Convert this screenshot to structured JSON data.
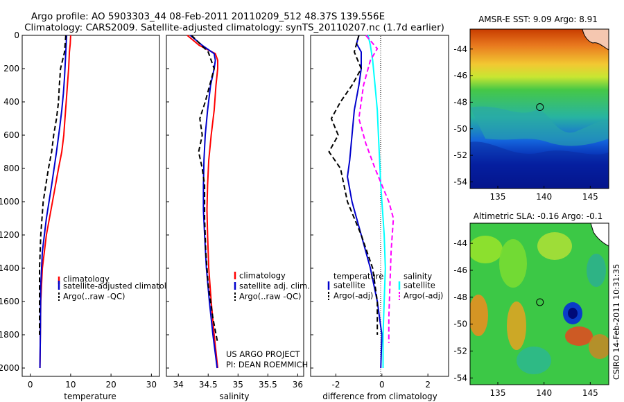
{
  "figure": {
    "title_line1": "Argo profile: AO 5903303_44 08-Feb-2011 20110209_512 48.37S 139.556E",
    "title_line2": "Climatology: CARS2009. Satellite-adjusted climatology: synTS_20110207.nc (1.7d earlier)",
    "credit_line1": "US ARGO PROJECT",
    "credit_line2": "PI: DEAN ROEMMICH",
    "stamp": "CSIRO 14-Feb-2011 10:31:35"
  },
  "colors": {
    "climatology": "#ff0000",
    "satellite": "#0000cc",
    "argo": "#000000",
    "satellite_salinity": "#00ffff",
    "argo_salinity": "#ff00ff"
  },
  "chart_data": [
    {
      "type": "line",
      "id": "temperature",
      "xlabel": "temperature",
      "ylabel": "",
      "xlim": [
        -2,
        32
      ],
      "ylim": [
        2050,
        0
      ],
      "xticks": [
        0,
        10,
        20,
        30
      ],
      "yticks": [
        0,
        200,
        400,
        600,
        800,
        1000,
        1200,
        1400,
        1600,
        1800,
        2000
      ],
      "legend": [
        "climatology",
        "satellite-adjusted climatology",
        "Argo(..raw -QC)"
      ],
      "series": [
        {
          "name": "climatology",
          "color": "#ff0000",
          "dash": "solid",
          "x": [
            10.0,
            9.9,
            9.7,
            9.5,
            9.2,
            8.9,
            8.6,
            8.3,
            7.8,
            7.0,
            5.5,
            4.0,
            3.0,
            2.6,
            2.5,
            2.4
          ],
          "y": [
            0,
            50,
            100,
            200,
            300,
            400,
            500,
            600,
            700,
            800,
            1000,
            1200,
            1400,
            1600,
            1800,
            2000
          ]
        },
        {
          "name": "satellite-adjusted climatology",
          "color": "#0000cc",
          "dash": "solid",
          "x": [
            9.0,
            8.9,
            8.7,
            8.5,
            8.2,
            7.8,
            7.3,
            6.5,
            5.3,
            4.0,
            3.0,
            2.6,
            2.5,
            2.4
          ],
          "y": [
            0,
            50,
            150,
            250,
            350,
            450,
            550,
            700,
            900,
            1100,
            1300,
            1500,
            1800,
            2000
          ]
        },
        {
          "name": "Argo(..raw -QC)",
          "color": "#000000",
          "dash": "dashed",
          "x": [
            8.8,
            8.5,
            7.5,
            7.2,
            7.0,
            6.5,
            5.8,
            5.3,
            4.5,
            3.2,
            2.6,
            2.3,
            2.3,
            2.3
          ],
          "y": [
            0,
            100,
            200,
            300,
            400,
            500,
            600,
            700,
            800,
            1000,
            1200,
            1400,
            1700,
            1800
          ]
        }
      ]
    },
    {
      "type": "line",
      "id": "salinity",
      "xlabel": "salinity",
      "ylabel": "",
      "xlim": [
        33.8,
        36.1
      ],
      "ylim": [
        2050,
        0
      ],
      "xticks": [
        34,
        34.5,
        35,
        35.5,
        36
      ],
      "legend": [
        "climatology",
        "satellite adj. clim.",
        "Argo(..raw -QC)"
      ],
      "series": [
        {
          "name": "climatology",
          "color": "#ff0000",
          "dash": "solid",
          "x": [
            34.15,
            34.35,
            34.62,
            34.66,
            34.66,
            34.63,
            34.6,
            34.55,
            34.51,
            34.49,
            34.48,
            34.49,
            34.51,
            34.55,
            34.6,
            34.66
          ],
          "y": [
            0,
            60,
            110,
            150,
            200,
            300,
            450,
            600,
            750,
            900,
            1050,
            1200,
            1400,
            1600,
            1800,
            2000
          ]
        },
        {
          "name": "satellite adj. clim.",
          "color": "#0000cc",
          "dash": "solid",
          "x": [
            34.2,
            34.4,
            34.6,
            34.62,
            34.6,
            34.54,
            34.49,
            34.45,
            34.43,
            34.42,
            34.42,
            34.44,
            34.47,
            34.52,
            34.58,
            34.65
          ],
          "y": [
            0,
            60,
            110,
            150,
            200,
            300,
            450,
            600,
            750,
            900,
            1050,
            1200,
            1400,
            1600,
            1800,
            2000
          ]
        },
        {
          "name": "Argo(..raw -QC)",
          "color": "#000000",
          "dash": "dashed",
          "x": [
            34.22,
            34.5,
            34.6,
            34.45,
            34.36,
            34.4,
            34.34,
            34.4,
            34.44,
            34.44,
            34.46,
            34.5,
            34.58,
            34.66
          ],
          "y": [
            0,
            100,
            200,
            400,
            500,
            600,
            700,
            800,
            900,
            1100,
            1300,
            1500,
            1700,
            1850
          ]
        }
      ]
    },
    {
      "type": "line",
      "id": "difference",
      "xlabel": "difference from climatology",
      "ylabel": "",
      "xlim": [
        -3.1,
        2.9
      ],
      "ylim": [
        2050,
        0
      ],
      "xticks": [
        -2,
        0,
        2
      ],
      "legend": [
        "temperature",
        "satellite",
        "Argo(-adj)",
        "salinity",
        "satellite",
        "Argo(-adj)"
      ],
      "series": [
        {
          "name": "satellite",
          "color": "#0000cc",
          "dash": "solid",
          "x": [
            -1.0,
            -1.1,
            -0.9,
            -0.9,
            -1.0,
            -1.2,
            -1.3,
            -1.4,
            -1.5,
            -1.3,
            -0.9,
            -0.5,
            -0.2,
            0.0,
            -0.05
          ],
          "y": [
            0,
            50,
            100,
            200,
            300,
            450,
            600,
            750,
            850,
            1000,
            1200,
            1400,
            1600,
            1800,
            2000
          ]
        },
        {
          "name": "Argo(-adj)",
          "color": "#000000",
          "dash": "dashed",
          "x": [
            -1.0,
            -1.2,
            -0.9,
            -1.3,
            -1.8,
            -2.2,
            -1.9,
            -2.3,
            -1.8,
            -1.5,
            -0.9,
            -0.4,
            -0.2,
            -0.2
          ],
          "y": [
            0,
            100,
            200,
            300,
            400,
            500,
            600,
            700,
            800,
            1000,
            1200,
            1400,
            1600,
            1800
          ]
        },
        {
          "name": "satellite",
          "color": "#00ffff",
          "dash": "solid",
          "x": [
            -0.6,
            -0.5,
            -0.4,
            -0.3,
            -0.2,
            -0.15,
            -0.1,
            -0.05,
            0.0,
            0.05,
            0.1,
            0.15,
            0.1,
            0.05,
            0.05
          ],
          "y": [
            0,
            60,
            150,
            300,
            450,
            600,
            750,
            900,
            1000,
            1100,
            1200,
            1400,
            1600,
            1800,
            2000
          ]
        },
        {
          "name": "Argo(-adj)",
          "color": "#ff00ff",
          "dash": "dashed",
          "x": [
            -0.7,
            -0.2,
            -0.5,
            -0.8,
            -1.0,
            -0.7,
            -0.3,
            0.0,
            0.3,
            0.5,
            0.4,
            0.35,
            0.3,
            0.3
          ],
          "y": [
            0,
            80,
            150,
            300,
            500,
            650,
            800,
            900,
            1000,
            1100,
            1300,
            1500,
            1700,
            1850
          ]
        }
      ]
    },
    {
      "type": "heatmap",
      "id": "sst_map",
      "title": "AMSR-E SST: 9.09 Argo: 8.91",
      "xlim": [
        132,
        147
      ],
      "ylim": [
        -54.5,
        -42.5
      ],
      "xticks": [
        135,
        140,
        145
      ],
      "yticks": [
        -44,
        -46,
        -48,
        -50,
        -52,
        -54
      ],
      "marker": {
        "lon": 139.556,
        "lat": -48.37
      }
    },
    {
      "type": "heatmap",
      "id": "sla_map",
      "title": "Altimetric SLA: -0.16 Argo: -0.1",
      "xlim": [
        132,
        147
      ],
      "ylim": [
        -54.5,
        -42.5
      ],
      "xticks": [
        135,
        140,
        145
      ],
      "yticks": [
        -44,
        -46,
        -48,
        -50,
        -52,
        -54
      ],
      "marker": {
        "lon": 139.556,
        "lat": -48.37
      }
    }
  ]
}
